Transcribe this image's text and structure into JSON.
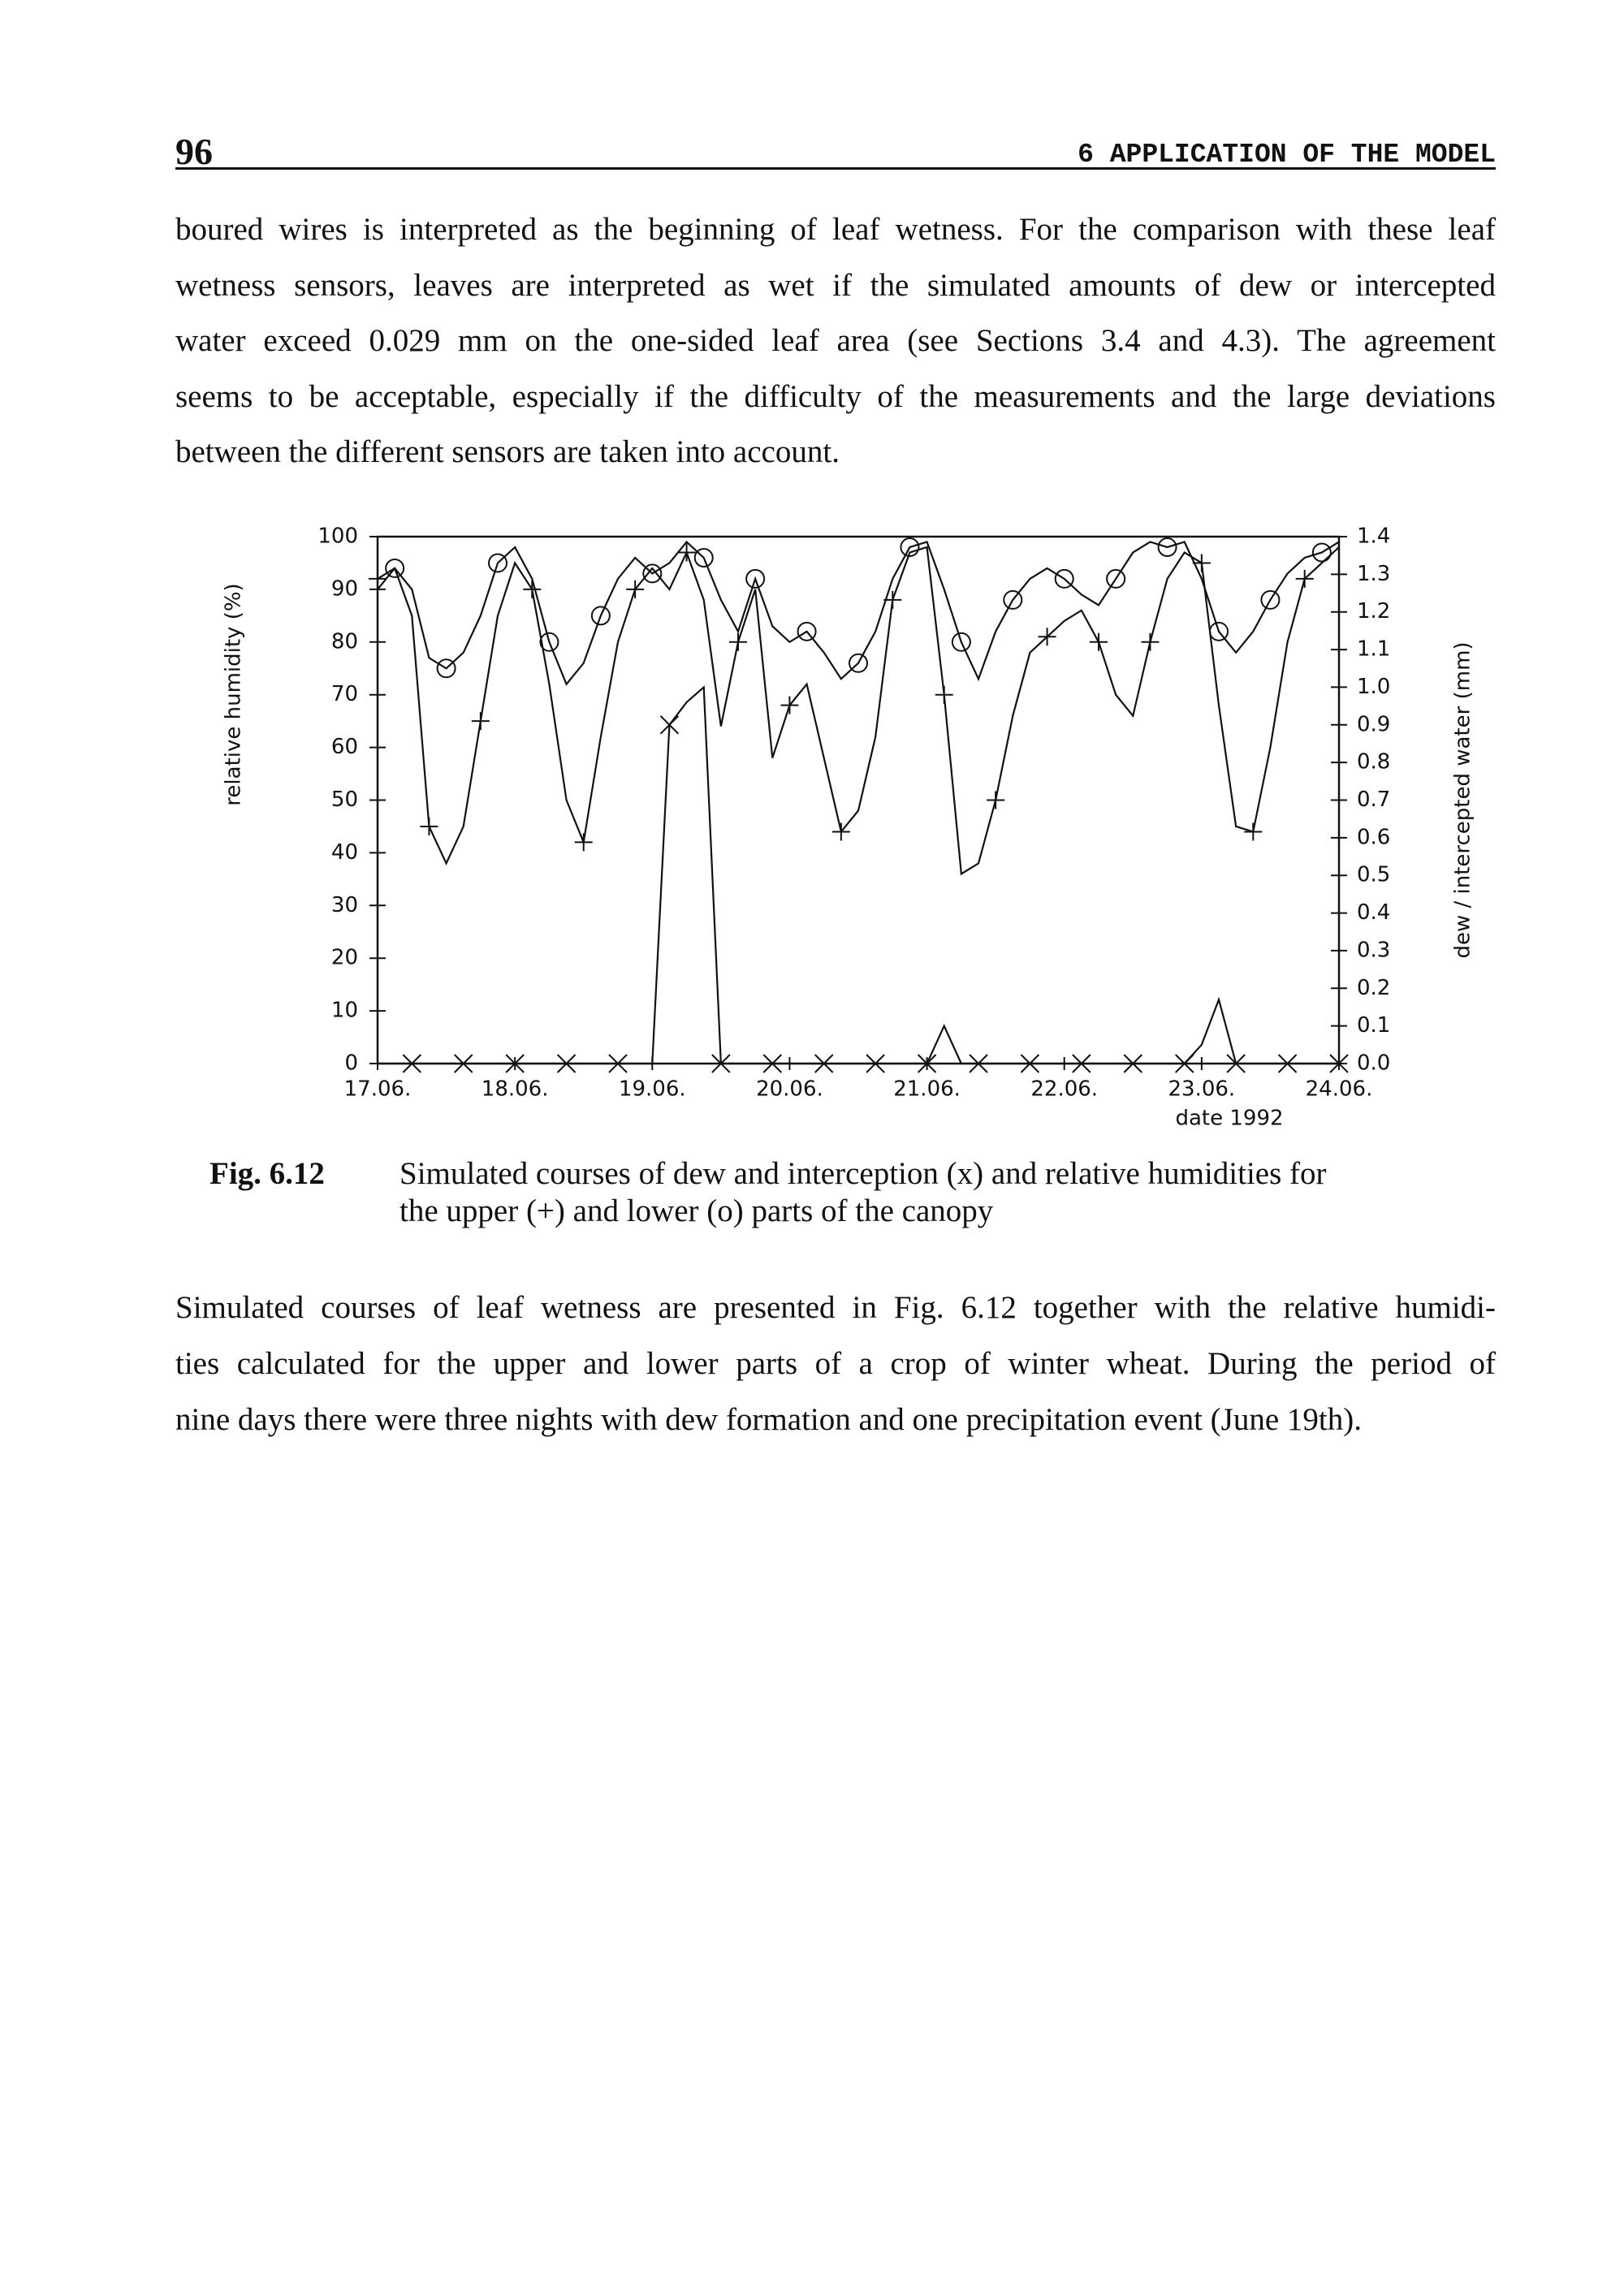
{
  "header": {
    "page_number": "96",
    "chapter": "6 APPLICATION OF THE MODEL"
  },
  "paragraphs": [
    {
      "lines": [
        "boured wires is interpreted as the beginning of leaf wetness. For the comparison with these leaf",
        "wetness sensors, leaves are interpreted as wet if the simulated amounts of dew or intercepted",
        "water exceed 0.029 mm on the one-sided leaf area (see Sections 3.4 and 4.3). The agreement",
        "seems to be acceptable, especially if the difficulty of the measurements and the large deviations",
        "between the different sensors are taken into account."
      ]
    },
    {
      "lines": [
        "Simulated courses of leaf wetness are presented in Fig. 6.12 together with the relative humidi-",
        "ties calculated for the upper and lower parts of a crop of winter wheat. During the period of",
        "nine days there were three nights with dew formation and one precipitation event (June 19th)."
      ]
    }
  ],
  "caption": {
    "label": "Fig. 6.12",
    "lines": [
      "Simulated courses of dew and interception (x) and relative humidities for",
      "the upper (+) and lower (o) parts of the canopy"
    ]
  },
  "chart_data": {
    "type": "line",
    "xlabel": "date 1992",
    "ylabel": "relative humidity (%)",
    "y2label": "dew / intercepted water (mm)",
    "x": [
      0,
      0.125,
      0.25,
      0.375,
      0.5,
      0.625,
      0.75,
      0.875,
      1,
      1.125,
      1.25,
      1.375,
      1.5,
      1.625,
      1.75,
      1.875,
      2,
      2.125,
      2.25,
      2.375,
      2.5,
      2.625,
      2.75,
      2.875,
      3,
      3.125,
      3.25,
      3.375,
      3.5,
      3.625,
      3.75,
      3.875,
      4,
      4.125,
      4.25,
      4.375,
      4.5,
      4.625,
      4.75,
      4.875,
      5,
      5.125,
      5.25,
      5.375,
      5.5,
      5.625,
      5.75,
      5.875,
      6,
      6.125,
      6.25,
      6.375,
      6.5,
      6.625,
      6.75,
      6.875,
      7
    ],
    "xlim": [
      0,
      7
    ],
    "xticks": [
      {
        "value": 0,
        "label": "17.06."
      },
      {
        "value": 1,
        "label": "18.06."
      },
      {
        "value": 2,
        "label": "19.06."
      },
      {
        "value": 3,
        "label": "20.06."
      },
      {
        "value": 4,
        "label": "21.06."
      },
      {
        "value": 5,
        "label": "22.06."
      },
      {
        "value": 6,
        "label": "23.06."
      },
      {
        "value": 7,
        "label": "24.06."
      }
    ],
    "ylim": [
      0,
      100
    ],
    "yticks": [
      0,
      10,
      20,
      30,
      40,
      50,
      60,
      70,
      80,
      90,
      100
    ],
    "y2lim": [
      0,
      1.4
    ],
    "y2ticks": [
      {
        "value": 0,
        "label": "0.0"
      },
      0.1,
      0.2,
      0.3,
      0.4,
      0.5,
      0.6,
      0.7,
      0.8,
      0.9,
      {
        "value": 1,
        "label": "1.0"
      },
      1.1,
      1.2,
      1.3,
      1.4
    ],
    "series": [
      {
        "marker": "+",
        "color": "#111111",
        "values": [
          92,
          94,
          85,
          45,
          38,
          45,
          65,
          85,
          95,
          90,
          72,
          50,
          42,
          62,
          80,
          90,
          94,
          90,
          97,
          88,
          64,
          80,
          90,
          58,
          68,
          72,
          58,
          44,
          48,
          62,
          88,
          97,
          98,
          70,
          36,
          38,
          50,
          66,
          78,
          81,
          84,
          86,
          80,
          70,
          66,
          80,
          92,
          97,
          95,
          68,
          45,
          44,
          60,
          80,
          92,
          95,
          98
        ]
      },
      {
        "marker": "o",
        "color": "#111111",
        "values": [
          90,
          94,
          90,
          77,
          75,
          78,
          85,
          95,
          98,
          92,
          80,
          72,
          76,
          85,
          92,
          96,
          93,
          95,
          99,
          96,
          88,
          82,
          92,
          83,
          80,
          82,
          78,
          73,
          76,
          82,
          92,
          98,
          99,
          90,
          80,
          73,
          82,
          88,
          92,
          94,
          92,
          89,
          87,
          92,
          97,
          99,
          98,
          99,
          92,
          82,
          78,
          82,
          88,
          93,
          96,
          97,
          99
        ]
      },
      {
        "marker": "x",
        "color": "#111111",
        "axis": "y2",
        "values": [
          0,
          0,
          0,
          0,
          0,
          0,
          0,
          0,
          0,
          0,
          0,
          0,
          0,
          0,
          0,
          0,
          0,
          0.9,
          0.96,
          1,
          0,
          0,
          0,
          0,
          0,
          0,
          0,
          0,
          0,
          0,
          0,
          0,
          0,
          0.1,
          0,
          0,
          0,
          0,
          0,
          0,
          0,
          0,
          0,
          0,
          0,
          0,
          0,
          0,
          0.05,
          0.17,
          0,
          0,
          0,
          0,
          0,
          0,
          0
        ]
      }
    ]
  }
}
